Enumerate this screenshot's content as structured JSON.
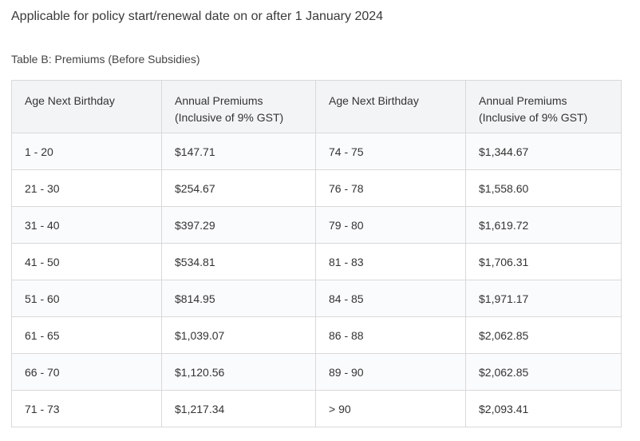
{
  "intro_text": "Applicable for policy start/renewal date on or after 1 January 2024",
  "table_caption": "Table B: Premiums (Before Subsidies)",
  "table": {
    "headers": [
      [
        "Age Next Birthday"
      ],
      [
        "Annual Premiums",
        "(Inclusive of 9% GST)"
      ],
      [
        "Age Next Birthday"
      ],
      [
        "Annual Premiums",
        "(Inclusive of 9% GST)"
      ]
    ],
    "rows": [
      [
        "1 - 20",
        "$147.71",
        "74 - 75",
        "$1,344.67"
      ],
      [
        "21 - 30",
        "$254.67",
        "76 - 78",
        "$1,558.60"
      ],
      [
        "31 - 40",
        "$397.29",
        "79 - 80",
        "$1,619.72"
      ],
      [
        "41 - 50",
        "$534.81",
        "81 - 83",
        "$1,706.31"
      ],
      [
        "51 - 60",
        "$814.95",
        "84 - 85",
        "$1,971.17"
      ],
      [
        "61 - 65",
        "$1,039.07",
        "86 - 88",
        "$2,062.85"
      ],
      [
        "66 - 70",
        "$1,120.56",
        "89 - 90",
        "$2,062.85"
      ],
      [
        "71 - 73",
        "$1,217.34",
        "> 90",
        "$2,093.41"
      ]
    ]
  }
}
